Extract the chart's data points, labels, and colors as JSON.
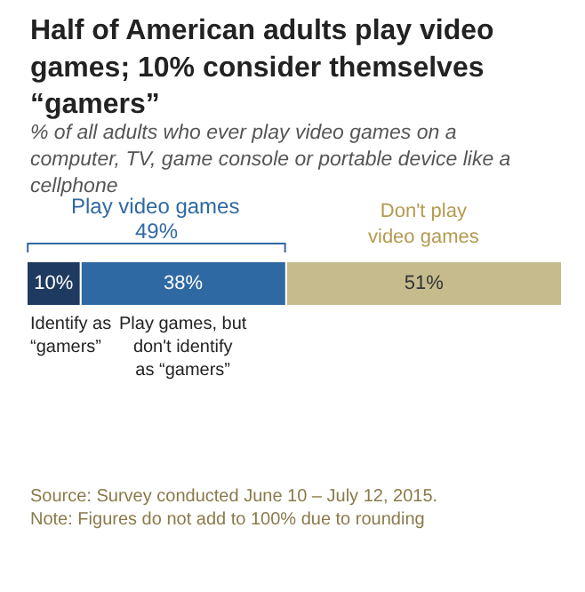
{
  "chart_data": {
    "type": "bar",
    "orientation": "horizontal",
    "stacked": true,
    "title": "Half of American adults play video games; 10% consider themselves “gamers”",
    "subtitle": "% of all adults who ever play video games on a computer, TV, game console or portable device like a cellphone",
    "categories": [
      null
    ],
    "series": [
      {
        "name": "Identify as “gamers”",
        "color": "#1f3a60",
        "values": [
          10
        ],
        "value_labels": [
          "10%"
        ]
      },
      {
        "name": "Play games, but don't identify as “gamers”",
        "color": "#2f69a3",
        "values": [
          38
        ],
        "value_labels": [
          "38%"
        ]
      },
      {
        "name": "Don't play video games",
        "color": "#c5bb8d",
        "values": [
          51
        ],
        "value_labels": [
          "51%"
        ]
      }
    ],
    "xlim": [
      0,
      99
    ],
    "tick_labels": false,
    "legend": false,
    "annotations": [
      "Play video games",
      "49%",
      "Source: Survey conducted June 10 – July 12, 2015.",
      "Note: Figures do not add to 100% due to rounding"
    ]
  }
}
